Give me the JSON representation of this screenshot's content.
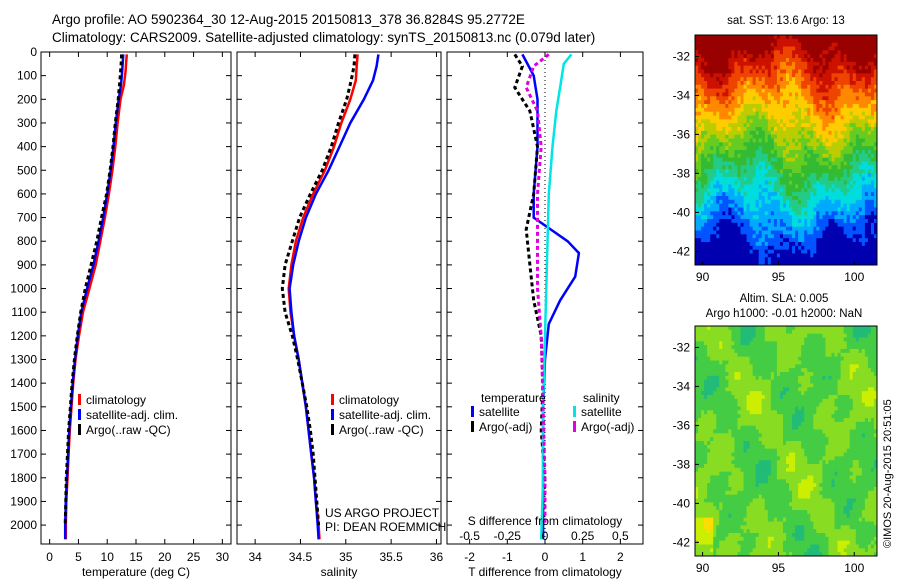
{
  "header": {
    "line1": "Argo profile: AO 5902364_30 12-Aug-2015 20150813_378 36.8284S 95.2772E",
    "line2": "Climatology: CARS2009. Satellite-adjusted climatology: synTS_20150813.nc (0.079d later)"
  },
  "credit": "©IMOS 20-Aug-2015 20:51:05",
  "colors": {
    "climatology": "#ff0000",
    "satellite": "#0000ff",
    "argo": "#000000",
    "sal_satellite": "#00e5e5",
    "sal_argo": "#e000e0"
  },
  "chart_data": [
    {
      "type": "line",
      "name": "temperature-profile",
      "xlabel": "temperature (deg C)",
      "ylabel": "",
      "xlim": [
        -1.5,
        31.5
      ],
      "ylim": [
        2080,
        0
      ],
      "xticks": [
        0,
        5,
        10,
        15,
        20,
        25,
        30
      ],
      "yticks": [
        0,
        100,
        200,
        300,
        400,
        500,
        600,
        700,
        800,
        900,
        1000,
        1100,
        1200,
        1300,
        1400,
        1500,
        1600,
        1700,
        1800,
        1900,
        2000
      ],
      "legend": {
        "position": "lower-middle",
        "entries": [
          "climatology",
          "satellite-adj. clim.",
          "Argo(..raw -QC)"
        ]
      },
      "series": [
        {
          "name": "climatology",
          "color": "#ff0000",
          "points": [
            [
              13.4,
              10
            ],
            [
              13.3,
              40
            ],
            [
              13.2,
              80
            ],
            [
              12.9,
              140
            ],
            [
              12.3,
              200
            ],
            [
              11.8,
              300
            ],
            [
              11.4,
              400
            ],
            [
              10.9,
              500
            ],
            [
              10.3,
              600
            ],
            [
              9.6,
              700
            ],
            [
              8.8,
              800
            ],
            [
              8.0,
              900
            ],
            [
              6.9,
              1000
            ],
            [
              5.8,
              1100
            ],
            [
              5.1,
              1200
            ],
            [
              4.5,
              1300
            ],
            [
              4.1,
              1400
            ],
            [
              3.8,
              1500
            ],
            [
              3.5,
              1600
            ],
            [
              3.3,
              1700
            ],
            [
              3.1,
              1800
            ],
            [
              2.9,
              1900
            ],
            [
              2.8,
              2000
            ],
            [
              2.8,
              2060
            ]
          ]
        },
        {
          "name": "satellite-adj. clim.",
          "color": "#0000ff",
          "points": [
            [
              12.8,
              10
            ],
            [
              12.7,
              40
            ],
            [
              12.6,
              80
            ],
            [
              12.4,
              140
            ],
            [
              12.0,
              200
            ],
            [
              11.5,
              300
            ],
            [
              11.1,
              400
            ],
            [
              10.6,
              500
            ],
            [
              10.0,
              600
            ],
            [
              9.3,
              700
            ],
            [
              8.5,
              800
            ],
            [
              7.6,
              900
            ],
            [
              6.5,
              1000
            ],
            [
              5.5,
              1100
            ],
            [
              4.9,
              1200
            ],
            [
              4.4,
              1300
            ],
            [
              4.0,
              1400
            ],
            [
              3.7,
              1500
            ],
            [
              3.4,
              1600
            ],
            [
              3.2,
              1700
            ],
            [
              3.0,
              1800
            ],
            [
              2.8,
              1900
            ],
            [
              2.7,
              2000
            ],
            [
              2.7,
              2060
            ]
          ]
        },
        {
          "name": "Argo(..raw -QC)",
          "color": "#000000",
          "dashed": true,
          "points": [
            [
              12.5,
              10
            ],
            [
              12.4,
              60
            ],
            [
              12.2,
              120
            ],
            [
              11.9,
              200
            ],
            [
              11.4,
              300
            ],
            [
              11.0,
              400
            ],
            [
              10.5,
              500
            ],
            [
              9.9,
              600
            ],
            [
              9.0,
              700
            ],
            [
              8.2,
              800
            ],
            [
              7.2,
              900
            ],
            [
              6.2,
              1000
            ],
            [
              5.4,
              1100
            ],
            [
              4.8,
              1200
            ],
            [
              4.3,
              1300
            ],
            [
              3.9,
              1400
            ],
            [
              3.6,
              1500
            ],
            [
              3.3,
              1600
            ],
            [
              3.1,
              1700
            ],
            [
              2.9,
              1800
            ],
            [
              2.8,
              1900
            ],
            [
              2.7,
              2000
            ]
          ]
        }
      ]
    },
    {
      "type": "line",
      "name": "salinity-profile",
      "xlabel": "salinity",
      "ylabel": "",
      "xlim": [
        33.8,
        36.05
      ],
      "ylim": [
        2080,
        0
      ],
      "xticks": [
        34,
        34.5,
        35,
        35.5,
        36
      ],
      "legend": {
        "position": "lower-right",
        "entries": [
          "climatology",
          "satellite-adj. clim.",
          "Argo(..raw -QC)"
        ]
      },
      "annotation": [
        "US ARGO PROJECT",
        "PI: DEAN ROEMMICH"
      ],
      "series": [
        {
          "name": "climatology",
          "color": "#ff0000",
          "points": [
            [
              35.13,
              10
            ],
            [
              35.12,
              60
            ],
            [
              35.11,
              120
            ],
            [
              35.05,
              200
            ],
            [
              34.95,
              300
            ],
            [
              34.87,
              400
            ],
            [
              34.77,
              500
            ],
            [
              34.64,
              600
            ],
            [
              34.53,
              700
            ],
            [
              34.45,
              800
            ],
            [
              34.4,
              900
            ],
            [
              34.37,
              1000
            ],
            [
              34.39,
              1100
            ],
            [
              34.43,
              1200
            ],
            [
              34.48,
              1300
            ],
            [
              34.52,
              1400
            ],
            [
              34.56,
              1500
            ],
            [
              34.59,
              1600
            ],
            [
              34.62,
              1700
            ],
            [
              34.65,
              1800
            ],
            [
              34.67,
              1900
            ],
            [
              34.7,
              2000
            ],
            [
              34.71,
              2060
            ]
          ]
        },
        {
          "name": "satellite-adj. clim.",
          "color": "#0000ff",
          "points": [
            [
              35.36,
              10
            ],
            [
              35.34,
              60
            ],
            [
              35.3,
              120
            ],
            [
              35.2,
              200
            ],
            [
              35.05,
              300
            ],
            [
              34.93,
              400
            ],
            [
              34.81,
              500
            ],
            [
              34.67,
              600
            ],
            [
              34.56,
              700
            ],
            [
              34.48,
              800
            ],
            [
              34.42,
              900
            ],
            [
              34.38,
              1000
            ],
            [
              34.4,
              1100
            ],
            [
              34.43,
              1200
            ],
            [
              34.48,
              1300
            ],
            [
              34.52,
              1400
            ],
            [
              34.56,
              1500
            ],
            [
              34.59,
              1600
            ],
            [
              34.62,
              1700
            ],
            [
              34.65,
              1800
            ],
            [
              34.67,
              1900
            ],
            [
              34.69,
              2000
            ],
            [
              34.7,
              2060
            ]
          ]
        },
        {
          "name": "Argo(..raw -QC)",
          "color": "#000000",
          "dashed": true,
          "points": [
            [
              35.1,
              10
            ],
            [
              35.09,
              60
            ],
            [
              35.06,
              120
            ],
            [
              35.01,
              200
            ],
            [
              34.92,
              300
            ],
            [
              34.84,
              400
            ],
            [
              34.74,
              500
            ],
            [
              34.61,
              600
            ],
            [
              34.49,
              700
            ],
            [
              34.41,
              800
            ],
            [
              34.33,
              900
            ],
            [
              34.3,
              1000
            ],
            [
              34.33,
              1100
            ],
            [
              34.41,
              1200
            ],
            [
              34.47,
              1300
            ],
            [
              34.52,
              1400
            ],
            [
              34.57,
              1500
            ],
            [
              34.61,
              1600
            ],
            [
              34.64,
              1700
            ],
            [
              34.66,
              1800
            ],
            [
              34.68,
              1900
            ],
            [
              34.7,
              2000
            ]
          ]
        }
      ]
    },
    {
      "type": "line",
      "name": "difference-profile",
      "xlabel": "T difference from climatology",
      "xlabel_top": "S difference from climatology",
      "xlim": [
        -2.6,
        2.6
      ],
      "ylim": [
        2080,
        0
      ],
      "xticks": [
        -2,
        -1,
        0,
        1,
        2
      ],
      "xticks_salinity": [
        -0.5,
        -0.25,
        0,
        0.25,
        0.5
      ],
      "legend": {
        "position": "lower",
        "temperature_title": "temperature",
        "salinity_title": "salinity",
        "entries": [
          "satellite",
          "Argo(-adj)",
          "satellite",
          "Argo(-adj)"
        ]
      },
      "series": [
        {
          "name": "temperature satellite",
          "color": "#0000ff",
          "points": [
            [
              -0.6,
              10
            ],
            [
              -0.5,
              40
            ],
            [
              -0.3,
              100
            ],
            [
              -0.2,
              200
            ],
            [
              -0.2,
              400
            ],
            [
              -0.3,
              600
            ],
            [
              -0.3,
              700
            ],
            [
              0.6,
              800
            ],
            [
              0.9,
              850
            ],
            [
              0.8,
              950
            ],
            [
              0.4,
              1050
            ],
            [
              0.1,
              1150
            ],
            [
              0.0,
              1300
            ],
            [
              -0.05,
              1500
            ],
            [
              -0.05,
              1800
            ],
            [
              -0.05,
              2060
            ]
          ]
        },
        {
          "name": "temperature Argo(-adj)",
          "color": "#000000",
          "dashed": true,
          "points": [
            [
              -0.8,
              10
            ],
            [
              -0.6,
              60
            ],
            [
              -0.8,
              150
            ],
            [
              -0.4,
              250
            ],
            [
              -0.2,
              400
            ],
            [
              -0.3,
              600
            ],
            [
              -0.5,
              750
            ],
            [
              -0.4,
              900
            ],
            [
              -0.3,
              1050
            ],
            [
              -0.1,
              1200
            ],
            [
              -0.05,
              1400
            ],
            [
              -0.1,
              1600
            ],
            [
              0.0,
              1800
            ],
            [
              -0.05,
              2000
            ]
          ]
        },
        {
          "name": "salinity satellite",
          "color": "#00e5e5",
          "points": [
            [
              0.7,
              10
            ],
            [
              0.5,
              50
            ],
            [
              0.4,
              150
            ],
            [
              0.3,
              250
            ],
            [
              0.2,
              400
            ],
            [
              0.1,
              600
            ],
            [
              0.05,
              900
            ],
            [
              0.0,
              1200
            ],
            [
              -0.05,
              1500
            ],
            [
              -0.05,
              1800
            ],
            [
              -0.1,
              2060
            ]
          ]
        },
        {
          "name": "salinity Argo(-adj)",
          "color": "#e000e0",
          "dashed": true,
          "points": [
            [
              0.1,
              10
            ],
            [
              -0.3,
              60
            ],
            [
              -0.5,
              150
            ],
            [
              -0.2,
              250
            ],
            [
              -0.1,
              400
            ],
            [
              -0.2,
              600
            ],
            [
              -0.2,
              800
            ],
            [
              -0.2,
              1000
            ],
            [
              -0.1,
              1200
            ],
            [
              -0.05,
              1500
            ],
            [
              0.0,
              1800
            ],
            [
              0.0,
              2000
            ]
          ]
        }
      ]
    },
    {
      "type": "heatmap",
      "name": "sst-map",
      "title": "sat. SST: 13.6  Argo: 13",
      "xlim": [
        89.5,
        101.5
      ],
      "ylim": [
        -42.7,
        -30.9
      ],
      "xticks": [
        90,
        95,
        100
      ],
      "yticks": [
        -32,
        -34,
        -36,
        -38,
        -40,
        -42
      ],
      "colormap": [
        "#0000b0",
        "#0055ff",
        "#00aaff",
        "#00dddd",
        "#22cc88",
        "#33bb33",
        "#66cc22",
        "#bbcc00",
        "#ffcc00",
        "#ff8800",
        "#ee4400",
        "#cc1100",
        "#990000"
      ]
    },
    {
      "type": "heatmap",
      "name": "sla-map",
      "title": "Altim. SLA: 0.005",
      "subtitle": "Argo h1000: -0.01  h2000: NaN",
      "xlim": [
        89.5,
        101.5
      ],
      "ylim": [
        -42.7,
        -30.9
      ],
      "xticks": [
        90,
        95,
        100
      ],
      "yticks": [
        -32,
        -34,
        -36,
        -38,
        -40,
        -42
      ],
      "colormap": [
        "#00aacc",
        "#22bb77",
        "#44cc44",
        "#88dd22",
        "#ccee00",
        "#ffdd00",
        "#ffaa00"
      ]
    }
  ]
}
